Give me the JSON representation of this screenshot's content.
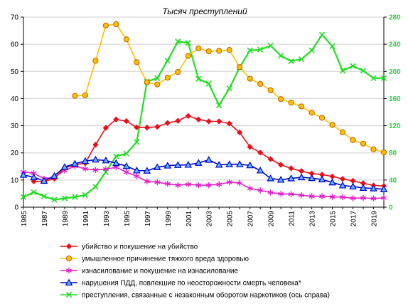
{
  "chart_data": {
    "type": "line",
    "title": "Тысяч преступлений",
    "xlabel": "",
    "ylabel": "",
    "x": [
      1985,
      1986,
      1987,
      1988,
      1989,
      1990,
      1991,
      1992,
      1993,
      1994,
      1995,
      1996,
      1997,
      1998,
      1999,
      2000,
      2001,
      2002,
      2003,
      2004,
      2005,
      2006,
      2007,
      2008,
      2009,
      2010,
      2011,
      2012,
      2013,
      2014,
      2015,
      2016,
      2017,
      2018,
      2019,
      2020
    ],
    "x_tick_labels": [
      "1985",
      "1987",
      "1989",
      "1991",
      "1993",
      "1995",
      "1997",
      "1999",
      "2001",
      "2003",
      "2005",
      "2007",
      "2009",
      "2011",
      "2013",
      "2015",
      "2017",
      "2019"
    ],
    "xlim": [
      1985,
      2020
    ],
    "ylim_left": [
      0,
      70
    ],
    "ylim_right": [
      0,
      280
    ],
    "y_ticks_left": [
      0,
      10,
      20,
      30,
      40,
      50,
      60,
      70
    ],
    "y_ticks_right": [
      0,
      40,
      80,
      120,
      160,
      200,
      240,
      280
    ],
    "grid": true,
    "legend_position": "bottom",
    "series": [
      {
        "name": "убийство и покушение на убийство",
        "axis": "left",
        "color": "#e8101a",
        "marker": "diamond",
        "values": [
          null,
          9.5,
          9.5,
          10.5,
          14.5,
          15.6,
          16.2,
          23,
          29.2,
          32.3,
          31.7,
          29.4,
          29.3,
          29.6,
          31,
          31.8,
          33.6,
          32.3,
          31.6,
          31.6,
          30.8,
          27.5,
          22.2,
          20.1,
          17.7,
          15.6,
          14.3,
          13.3,
          12.4,
          12,
          11.3,
          10.4,
          9.7,
          8.8,
          8,
          7.8
        ]
      },
      {
        "name": "умышленное причинение тяжкого вреда здоровью",
        "axis": "left",
        "color": "#ffc000",
        "marker": "circle",
        "values": [
          null,
          null,
          null,
          null,
          null,
          41,
          41.2,
          53.9,
          66.9,
          67.4,
          61.8,
          53.4,
          46,
          45.2,
          47.7,
          49.8,
          55.7,
          58.5,
          57.4,
          57.6,
          57.9,
          51.6,
          47.3,
          45.4,
          43.1,
          39.8,
          38.5,
          37.1,
          34.8,
          32.9,
          30.3,
          27.6,
          24.7,
          23.4,
          21.3,
          20.2
        ]
      },
      {
        "name": "изнасилование и покушение на изнасилование",
        "axis": "left",
        "color": "#e020c8",
        "marker": "star",
        "values": [
          13,
          12.5,
          10.5,
          11,
          13.5,
          15.1,
          14.1,
          13.7,
          14,
          14.7,
          12.9,
          11.4,
          9.5,
          9.2,
          8.6,
          8.1,
          8.4,
          8.1,
          8.1,
          8.4,
          9.2,
          8.9,
          6.9,
          6.2,
          5.4,
          4.9,
          4.8,
          4.4,
          4,
          4,
          3.8,
          3.7,
          3.3,
          3.4,
          3.2,
          3.4
        ]
      },
      {
        "name": "нарушения ПДД, повлекшие по неосторожности смерть человека*",
        "axis": "left",
        "color": "#0000c8",
        "marker": "triangle",
        "values": [
          11.9,
          11,
          9.7,
          11.5,
          14.8,
          16,
          17,
          17.5,
          17.2,
          16.2,
          15.1,
          13.5,
          13.4,
          14.7,
          15.3,
          15.5,
          15.6,
          16.3,
          17.4,
          15.6,
          15.8,
          15.8,
          15.4,
          13.5,
          10.6,
          10.1,
          10.6,
          11,
          10.7,
          10.2,
          9.1,
          8,
          7.6,
          7.1,
          6.9,
          6.6
        ]
      },
      {
        "name": "преступления, связанные с незаконным оборотом наркотиков (ось справа)",
        "axis": "right",
        "color": "#22dd22",
        "marker": "x",
        "values": [
          15,
          22,
          16,
          11,
          13,
          15,
          18,
          30,
          52,
          75,
          79,
          96,
          185,
          190,
          216,
          244,
          242,
          189,
          182,
          150,
          175,
          206,
          231,
          232,
          238,
          223,
          215,
          218,
          231,
          254,
          237,
          201,
          208,
          201,
          190,
          190
        ]
      }
    ]
  }
}
